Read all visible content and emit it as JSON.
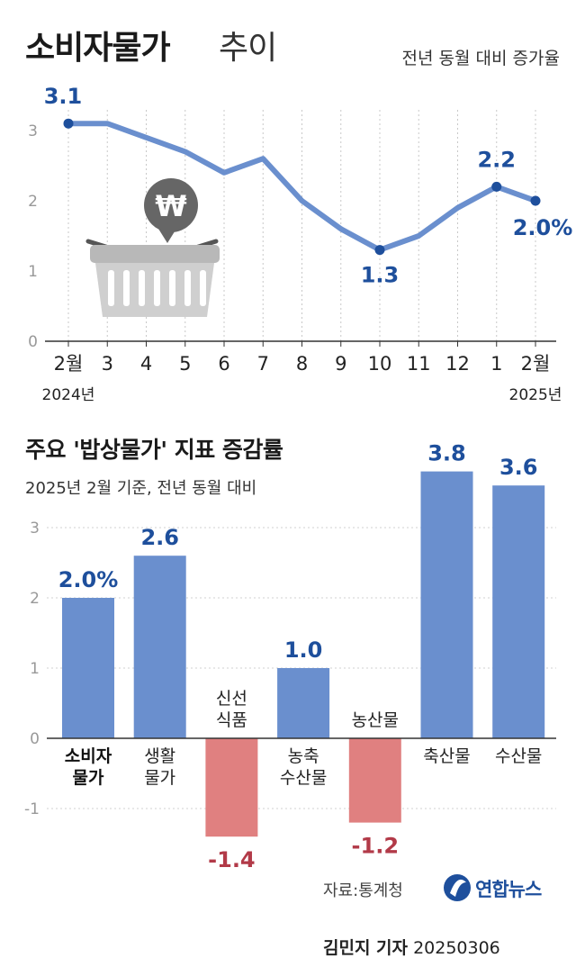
{
  "header": {
    "title_main": "소비자물가",
    "title_sub": "추이",
    "unit": "전년 동월 대비 증가율"
  },
  "chart_data": [
    {
      "type": "line",
      "x": [
        "2월",
        "3",
        "4",
        "5",
        "6",
        "7",
        "8",
        "9",
        "10",
        "11",
        "12",
        "1",
        "2월"
      ],
      "x_year_labels": {
        "first": "2024년",
        "last": "2025년"
      },
      "values": [
        3.1,
        3.1,
        2.9,
        2.7,
        2.4,
        2.6,
        2.0,
        1.6,
        1.3,
        1.5,
        1.9,
        2.2,
        2.0
      ],
      "labels": [
        {
          "index": 0,
          "text": "3.1"
        },
        {
          "index": 8,
          "text": "1.3"
        },
        {
          "index": 11,
          "text": "2.2"
        },
        {
          "index": 12,
          "text": "2.0%"
        }
      ],
      "ylim": [
        0,
        3.3
      ],
      "yticks": [
        "0",
        "1",
        "2",
        "3"
      ],
      "color": "#6a8fce"
    },
    {
      "type": "bar",
      "title": "주요 '밥상물가' 지표 증감률",
      "subtitle": "2025년 2월 기준, 전년 동월 대비",
      "categories": [
        {
          "lines": [
            "소비자",
            "물가"
          ],
          "bold": true
        },
        {
          "lines": [
            "생활",
            "물가"
          ],
          "bold": false
        },
        {
          "lines": [
            "신선",
            "식품"
          ],
          "bold": false
        },
        {
          "lines": [
            "농축",
            "수산물"
          ],
          "bold": false
        },
        {
          "lines": [
            "농산물"
          ],
          "bold": false
        },
        {
          "lines": [
            "축산물"
          ],
          "bold": false
        },
        {
          "lines": [
            "수산물"
          ],
          "bold": false
        }
      ],
      "values": [
        2.0,
        2.6,
        -1.4,
        1.0,
        -1.2,
        3.8,
        3.6
      ],
      "value_labels": [
        "2.0%",
        "2.6",
        "-1.4",
        "1.0",
        "-1.2",
        "3.8",
        "3.6"
      ],
      "ylim": [
        -1.5,
        3.3
      ],
      "yticks": [
        "-1",
        "0",
        "1",
        "2",
        "3"
      ],
      "positive_color": "#6a8fce",
      "negative_color": "#e08080"
    }
  ],
  "footer": {
    "source": "자료:통계청",
    "logo_text": "연합뉴스",
    "reporter": "김민지 기자",
    "date": "20250306"
  }
}
